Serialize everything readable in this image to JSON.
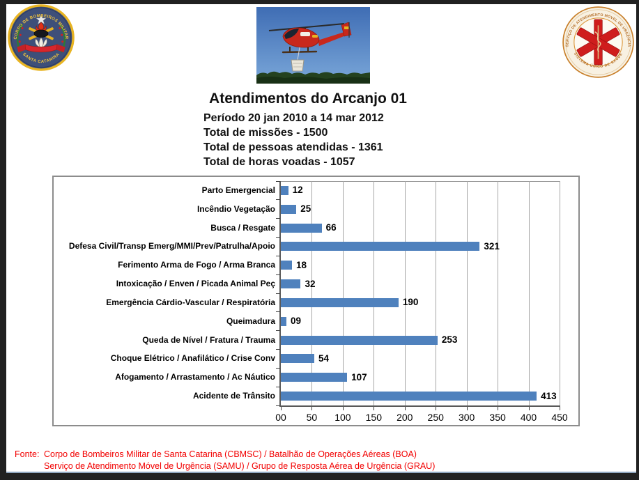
{
  "page": {
    "frame_color": "#212121",
    "background": "#ffffff",
    "divider_color": "#8fa6bf"
  },
  "header": {
    "left_logo": {
      "name": "cbmsc-crest",
      "arc_top": "CORPO DE BOMBEIROS MILITAR",
      "arc_bottom": "SANTA CATARINA",
      "field_color": "#3e4f79",
      "ring_color": "#e8b422"
    },
    "helicopter_photo": {
      "name": "helicopter-photo"
    },
    "right_logo": {
      "name": "samu-seal",
      "arc_top": "SERVIÇO DE ATENDIMENTO MÓVEL DE URGÊNCIA",
      "arc_bottom": "SISTEMA ÚNICO DE SAÚDE",
      "star_color": "#cf1d1d",
      "ring_color": "#c87f2a"
    },
    "title": "Atendimentos do Arcanjo 01",
    "subtitle_lines": [
      "Período 20 jan 2010 a 14 mar 2012",
      "Total de missões - 1500",
      "Total de pessoas atendidas - 1361",
      "Total de horas voadas - 1057"
    ]
  },
  "chart_data": {
    "type": "bar",
    "orientation": "horizontal",
    "title": "Atendimentos do Arcanjo 01",
    "categories": [
      "Parto Emergencial",
      "Incêndio Vegetação",
      "Busca / Resgate",
      "Defesa Civil/Transp Emerg/MMI/Prev/Patrulha/Apoio",
      "Ferimento Arma de Fogo / Arma Branca",
      "Intoxicação / Enven / Picada Animal Peç",
      "Emergência Cárdio-Vascular / Respiratória",
      "Queimadura",
      "Queda de Nível / Fratura / Trauma",
      "Choque Elétrico / Anafilático / Crise Conv",
      "Afogamento / Arrastamento / Ac Náutico",
      "Acidente de Trânsito"
    ],
    "values": [
      12,
      25,
      66,
      321,
      18,
      32,
      190,
      9,
      253,
      54,
      107,
      413
    ],
    "value_labels": [
      "12",
      "25",
      "66",
      "321",
      "18",
      "32",
      "190",
      "09",
      "253",
      "54",
      "107",
      "413"
    ],
    "x_ticks": [
      "00",
      "50",
      "100",
      "150",
      "200",
      "250",
      "300",
      "350",
      "400",
      "450"
    ],
    "xlim": [
      0,
      450
    ],
    "grid": true,
    "legend": false,
    "bar_color": "#4F81BD",
    "gridline_color": "#a6a6a6",
    "axis_color": "#595959"
  },
  "footer": {
    "label": "Fonte:",
    "lines": [
      "Corpo de Bombeiros Militar de Santa Catarina (CBMSC) / Batalhão de Operações Aéreas (BOA)",
      "Serviço de Atendimento Móvel de Urgência (SAMU) / Grupo de Resposta Aérea de Urgência (GRAU)"
    ],
    "color": "#f20000"
  }
}
